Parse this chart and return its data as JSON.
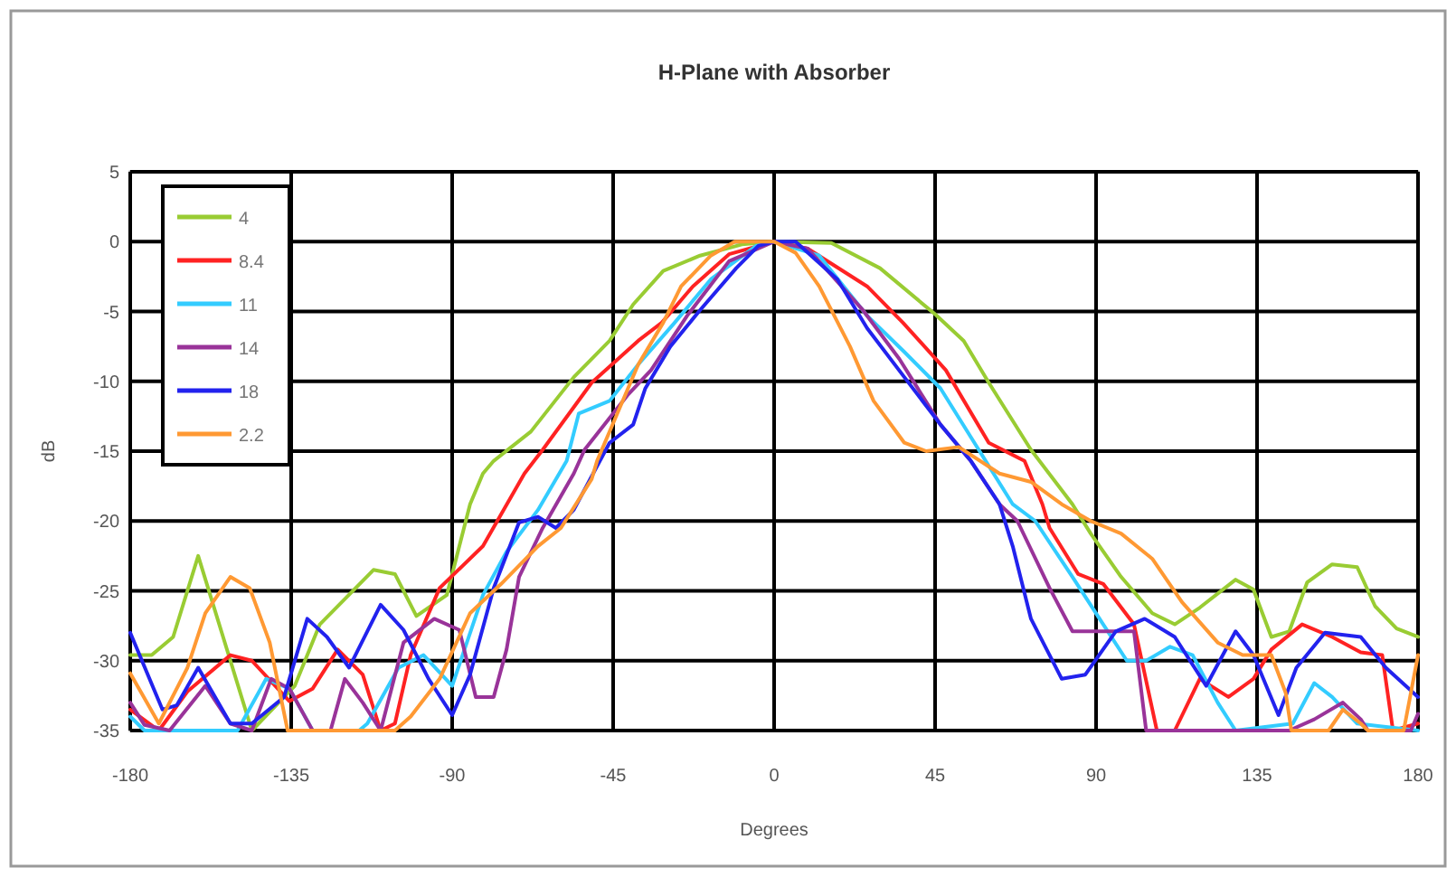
{
  "chart_data": {
    "type": "line",
    "title": "H-Plane with Absorber",
    "xlabel": "Degrees",
    "ylabel": "dB",
    "xlim": [
      -180,
      180
    ],
    "xticks": [
      -180,
      -135,
      -90,
      -45,
      0,
      45,
      90,
      135,
      180
    ],
    "ylim": [
      -35,
      5
    ],
    "yticks": [
      5,
      0,
      -5,
      -10,
      -15,
      -20,
      -25,
      -30,
      -35
    ],
    "grid": true,
    "legend": "top left",
    "marker": "none",
    "line_style": "solid",
    "series": [
      {
        "name": "4",
        "color": "#99cc33",
        "x": [
          -180,
          -174,
          -168,
          -161,
          -146,
          -134,
          -127,
          -112,
          -106,
          -100,
          -91.5,
          -85,
          -81.4,
          -78.4,
          -68,
          -56,
          -46,
          -39.4,
          -31,
          -20.7,
          -9,
          0,
          16,
          29.6,
          45,
          53,
          60,
          71.8,
          83.4,
          88.5,
          97,
          105.7,
          112,
          119,
          129,
          134,
          139,
          144,
          149,
          156,
          163,
          168,
          174,
          180
        ],
        "values": [
          -29.6,
          -29.6,
          -28.3,
          -22.5,
          -35,
          -31.8,
          -27.4,
          -23.5,
          -23.8,
          -26.8,
          -25.3,
          -18.8,
          -16.6,
          -15.7,
          -13.6,
          -9.7,
          -7.1,
          -4.5,
          -2.1,
          -1,
          -0.2,
          0,
          -0.1,
          -1.9,
          -5.2,
          -7.1,
          -10.1,
          -14.9,
          -18.8,
          -20.9,
          -24,
          -26.6,
          -27.4,
          -26.2,
          -24.2,
          -24.9,
          -28.3,
          -27.9,
          -24.4,
          -23.1,
          -23.3,
          -26.1,
          -27.7,
          -28.3
        ]
      },
      {
        "name": "8.4",
        "color": "#ff2222",
        "x": [
          -180,
          -172,
          -164,
          -152,
          -146,
          -135.5,
          -129,
          -122,
          -115,
          -110,
          -106,
          -101.6,
          -93.5,
          -81.4,
          -69.8,
          -64.7,
          -51,
          -38,
          -31.4,
          -22.7,
          -12.6,
          0,
          9.4,
          26,
          36,
          48,
          60,
          70,
          75,
          77,
          85,
          92,
          100.6,
          107,
          112,
          119,
          127,
          134,
          139,
          147.6,
          156,
          164,
          170,
          173,
          180
        ],
        "values": [
          -33.5,
          -35,
          -32.2,
          -29.6,
          -30,
          -32.9,
          -32,
          -29.2,
          -31,
          -35,
          -34.5,
          -29.6,
          -24.8,
          -21.8,
          -16.6,
          -14.9,
          -10.1,
          -7.1,
          -5.8,
          -3.2,
          -0.9,
          0,
          -0.5,
          -3.2,
          -5.8,
          -9.2,
          -14.4,
          -15.7,
          -18.8,
          -20.5,
          -23.8,
          -24.5,
          -27.4,
          -35,
          -35,
          -31.3,
          -32.6,
          -31.3,
          -29.2,
          -27.4,
          -28.3,
          -29.4,
          -29.6,
          -35,
          -34.5
        ]
      },
      {
        "name": "11",
        "color": "#33ccff",
        "x": [
          -180,
          -176,
          -150,
          -142,
          -135.5,
          -129,
          -116,
          -113.7,
          -105,
          -98,
          -90,
          -81.4,
          -74.8,
          -66,
          -58,
          -54.6,
          -46,
          -38,
          -27.8,
          -17.7,
          -5,
          0,
          12.6,
          26,
          36.4,
          46.5,
          55,
          66.7,
          73,
          83.4,
          92,
          98.6,
          104,
          110.7,
          117,
          124,
          129,
          145,
          151,
          156,
          163,
          180
        ],
        "values": [
          -34,
          -35,
          -35,
          -31.3,
          -32,
          -35,
          -35,
          -34.5,
          -30.5,
          -29.6,
          -31.8,
          -25.3,
          -22.2,
          -19.2,
          -15.7,
          -12.3,
          -11.4,
          -8.8,
          -5.8,
          -2.7,
          -0.3,
          0,
          -1,
          -5.3,
          -7.9,
          -10.5,
          -14,
          -18.8,
          -20,
          -24,
          -27.4,
          -30,
          -30,
          -29,
          -29.6,
          -33,
          -35,
          -34.5,
          -31.6,
          -32.6,
          -34.5,
          -35
        ]
      },
      {
        "name": "14",
        "color": "#993399",
        "x": [
          -180,
          -176,
          -169,
          -159,
          -152,
          -146,
          -140.6,
          -135.5,
          -129,
          -124,
          -120,
          -115,
          -110,
          -103.6,
          -95,
          -88,
          -83.4,
          -78.4,
          -74.8,
          -71.3,
          -64.7,
          -56,
          -53,
          -41,
          -34.4,
          -24.3,
          -12.6,
          0,
          9.4,
          24.8,
          35,
          46.5,
          55,
          63,
          68,
          77,
          83.4,
          93,
          100.6,
          104,
          144,
          151,
          159,
          164,
          166,
          178,
          180
        ],
        "values": [
          -33,
          -34.6,
          -35,
          -31.8,
          -34.5,
          -35,
          -31.3,
          -32,
          -35,
          -35,
          -31.3,
          -33,
          -35,
          -28.7,
          -27,
          -27.8,
          -32.6,
          -32.6,
          -29.2,
          -24,
          -20.5,
          -16.6,
          -14.9,
          -11,
          -9.2,
          -5.3,
          -1.4,
          0,
          -0.5,
          -4.9,
          -8.4,
          -13.1,
          -15.7,
          -18.8,
          -20,
          -24.8,
          -27.9,
          -27.9,
          -27.9,
          -35,
          -35,
          -34.2,
          -33,
          -34.2,
          -35,
          -35,
          -33.8
        ]
      },
      {
        "name": "18",
        "color": "#2222ee",
        "x": [
          -180,
          -171,
          -167,
          -161,
          -152,
          -146,
          -137,
          -130.5,
          -125,
          -118.8,
          -110,
          -103.6,
          -96.6,
          -90,
          -85,
          -78.4,
          -71.3,
          -66,
          -61,
          -56,
          -46,
          -39.4,
          -36,
          -29,
          -20.7,
          -10.6,
          -4.4,
          0,
          6,
          17.7,
          26,
          36.4,
          46.5,
          55,
          63,
          66.7,
          71.8,
          80.4,
          87,
          95.5,
          103.6,
          112,
          120.8,
          129,
          134,
          141,
          146,
          154,
          164,
          171,
          180
        ],
        "values": [
          -28,
          -33.5,
          -33.2,
          -30.5,
          -34.5,
          -34.5,
          -32.6,
          -27,
          -28.3,
          -30.5,
          -26,
          -27.8,
          -31.3,
          -33.9,
          -31,
          -24.8,
          -20.1,
          -19.7,
          -20.5,
          -19.2,
          -14.4,
          -13.1,
          -10.5,
          -7.5,
          -4.9,
          -1.9,
          -0.3,
          0,
          0,
          -2.7,
          -6.2,
          -9.7,
          -13.1,
          -15.7,
          -18.8,
          -21.8,
          -27,
          -31.3,
          -31,
          -27.9,
          -27,
          -28.3,
          -31.8,
          -27.9,
          -29.6,
          -33.9,
          -30.5,
          -28,
          -28.3,
          -30.5,
          -32.6
        ]
      },
      {
        "name": "2.2",
        "color": "#ff9933",
        "x": [
          -180,
          -172,
          -164,
          -159,
          -152,
          -146.6,
          -141,
          -136,
          -106,
          -101.6,
          -93.5,
          -85,
          -76.3,
          -66,
          -59.6,
          -51,
          -49.5,
          -44.5,
          -38,
          -31,
          -26,
          -17.7,
          -11,
          0,
          6,
          12.6,
          21.2,
          27.8,
          36.4,
          42.5,
          51.6,
          63,
          71.8,
          80.4,
          88.5,
          97,
          105.7,
          114,
          124,
          131,
          139,
          143,
          144.6,
          155,
          159,
          164,
          166,
          176,
          180
        ],
        "values": [
          -30.9,
          -34.5,
          -30.5,
          -26.6,
          -24,
          -24.8,
          -28.7,
          -35,
          -35,
          -34,
          -31.3,
          -26.6,
          -24.5,
          -21.8,
          -20.5,
          -17,
          -15.7,
          -12.7,
          -8.8,
          -5.8,
          -3.2,
          -1,
          0,
          0,
          -0.8,
          -3.2,
          -7.5,
          -11.4,
          -14.4,
          -15,
          -14.7,
          -16.6,
          -17.2,
          -18.8,
          -20,
          -20.9,
          -22.7,
          -25.8,
          -28.7,
          -29.6,
          -29.6,
          -32.3,
          -35,
          -35,
          -33.5,
          -34.5,
          -35,
          -35,
          -29.6
        ]
      }
    ]
  }
}
